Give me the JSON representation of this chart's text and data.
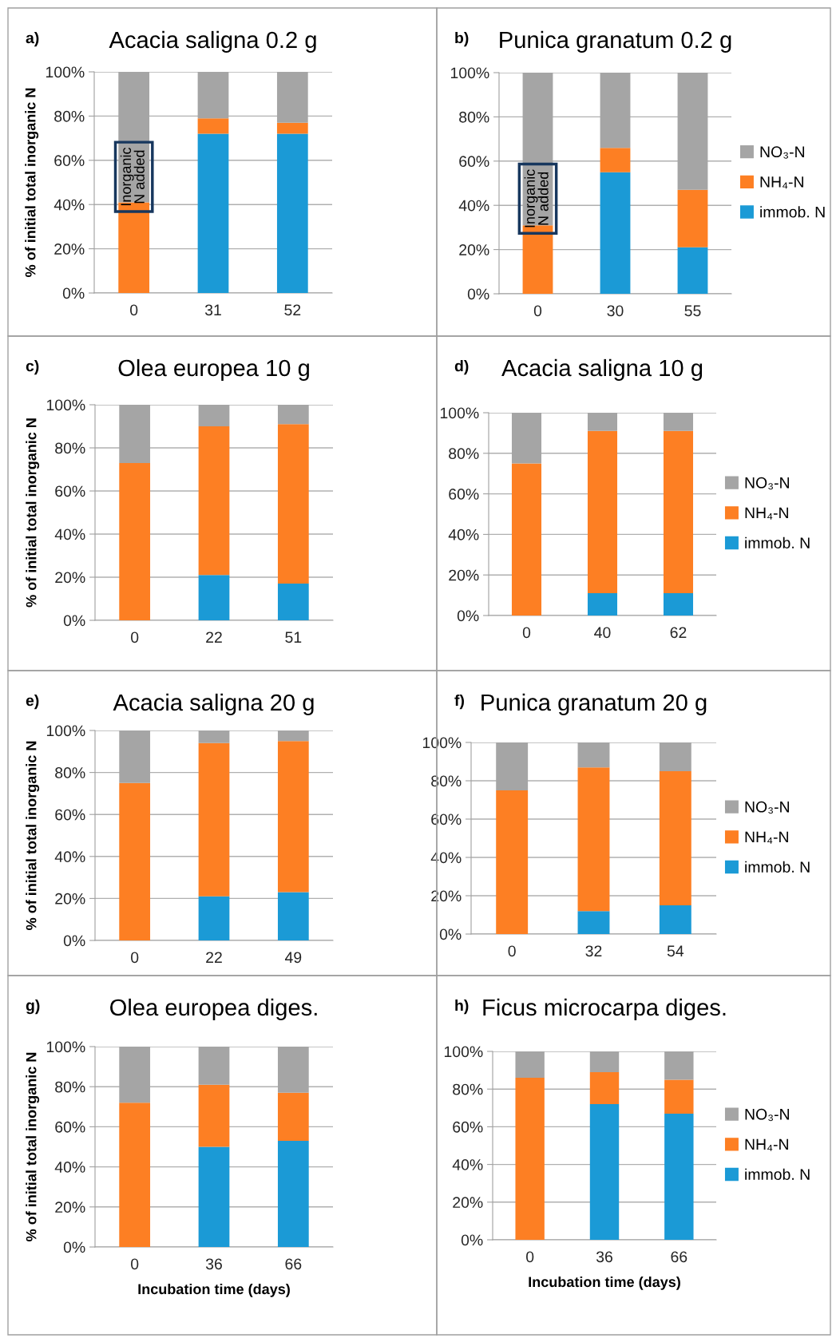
{
  "chart_data": [
    {
      "type": "bar",
      "stacked": true,
      "title": "Acacia saligna 0.2 g",
      "ylabel": "% of initial total inorganic N",
      "categories": [
        "0",
        "31",
        "52"
      ],
      "ylim": [
        0,
        100
      ],
      "yticks": [
        {
          "value": 0,
          "label": "0%"
        },
        {
          "value": 20,
          "label": "20%"
        },
        {
          "value": 40,
          "label": "40%"
        },
        {
          "value": 60,
          "label": "60%"
        },
        {
          "value": 80,
          "label": "80%"
        },
        {
          "value": 100,
          "label": "100%"
        }
      ],
      "grid": "y",
      "legend": false,
      "annotations": [
        "a)",
        "Inorganic\nN added"
      ],
      "series": [
        {
          "color": "#1b9ad6",
          "values": [
            null,
            72,
            72
          ]
        },
        {
          "color": "#fd7f23",
          "values": [
            41,
            7,
            5
          ]
        },
        {
          "color": "#a5a5a5",
          "values": [
            59,
            21,
            23
          ]
        }
      ]
    },
    {
      "type": "bar",
      "stacked": true,
      "title": "Punica granatum 0.2 g",
      "categories": [
        "0",
        "30",
        "55"
      ],
      "ylim": [
        0,
        100
      ],
      "yticks": [
        {
          "value": 0,
          "label": "0%"
        },
        {
          "value": 20,
          "label": "20%"
        },
        {
          "value": 40,
          "label": "40%"
        },
        {
          "value": 60,
          "label": "60%"
        },
        {
          "value": 80,
          "label": "80%"
        },
        {
          "value": 100,
          "label": "100%"
        }
      ],
      "grid": "y",
      "legend": "right",
      "annotations": [
        "b)",
        "Inorganic\nN added"
      ],
      "series": [
        {
          "name": "immob. N",
          "color": "#1b9ad6",
          "values": [
            null,
            55,
            21
          ]
        },
        {
          "name": "NH₄-N",
          "color": "#fd7f23",
          "values": [
            31,
            11,
            26
          ]
        },
        {
          "name": "NO₃-N",
          "color": "#a5a5a5",
          "values": [
            69,
            34,
            53
          ]
        }
      ]
    },
    {
      "type": "bar",
      "stacked": true,
      "title": "Olea europea 10 g",
      "ylabel": "% of initial total inorganic N",
      "categories": [
        "0",
        "22",
        "51"
      ],
      "ylim": [
        0,
        100
      ],
      "yticks": [
        {
          "value": 0,
          "label": "0%"
        },
        {
          "value": 20,
          "label": "20%"
        },
        {
          "value": 40,
          "label": "40%"
        },
        {
          "value": 60,
          "label": "60%"
        },
        {
          "value": 80,
          "label": "80%"
        },
        {
          "value": 100,
          "label": "100%"
        }
      ],
      "grid": "y",
      "legend": false,
      "annotations": [
        "c)"
      ],
      "series": [
        {
          "color": "#1b9ad6",
          "values": [
            null,
            21,
            17
          ]
        },
        {
          "color": "#fd7f23",
          "values": [
            73,
            69,
            74
          ]
        },
        {
          "color": "#a5a5a5",
          "values": [
            27,
            10,
            9
          ]
        }
      ]
    },
    {
      "type": "bar",
      "stacked": true,
      "title": "Acacia saligna 10 g",
      "categories": [
        "0",
        "40",
        "62"
      ],
      "ylim": [
        0,
        100
      ],
      "yticks": [
        {
          "value": 0,
          "label": "0%"
        },
        {
          "value": 20,
          "label": "20%"
        },
        {
          "value": 40,
          "label": "40%"
        },
        {
          "value": 60,
          "label": "60%"
        },
        {
          "value": 80,
          "label": "80%"
        },
        {
          "value": 100,
          "label": "100%"
        }
      ],
      "grid": "y",
      "legend": "right",
      "annotations": [
        "d)"
      ],
      "series": [
        {
          "name": "immob. N",
          "color": "#1b9ad6",
          "values": [
            null,
            11,
            11
          ]
        },
        {
          "name": "NH₄-N",
          "color": "#fd7f23",
          "values": [
            75,
            80,
            80
          ]
        },
        {
          "name": "NO₃-N",
          "color": "#a5a5a5",
          "values": [
            25,
            9,
            9
          ]
        }
      ]
    },
    {
      "type": "bar",
      "stacked": true,
      "title": "Acacia saligna 20 g",
      "ylabel": "% of initial total inorganic N",
      "categories": [
        "0",
        "22",
        "49"
      ],
      "ylim": [
        0,
        100
      ],
      "yticks": [
        {
          "value": 0,
          "label": "0%"
        },
        {
          "value": 20,
          "label": "20%"
        },
        {
          "value": 40,
          "label": "40%"
        },
        {
          "value": 60,
          "label": "60%"
        },
        {
          "value": 80,
          "label": "80%"
        },
        {
          "value": 100,
          "label": "100%"
        }
      ],
      "grid": "y",
      "legend": false,
      "annotations": [
        "e)"
      ],
      "series": [
        {
          "color": "#1b9ad6",
          "values": [
            null,
            21,
            23
          ]
        },
        {
          "color": "#fd7f23",
          "values": [
            75,
            73,
            72
          ]
        },
        {
          "color": "#a5a5a5",
          "values": [
            25,
            6,
            5
          ]
        }
      ]
    },
    {
      "type": "bar",
      "stacked": true,
      "title": "Punica granatum 20 g",
      "categories": [
        "0",
        "32",
        "54"
      ],
      "ylim": [
        0,
        100
      ],
      "yticks": [
        {
          "value": 0,
          "label": "0%"
        },
        {
          "value": 20,
          "label": "20%"
        },
        {
          "value": 40,
          "label": "40%"
        },
        {
          "value": 60,
          "label": "60%"
        },
        {
          "value": 80,
          "label": "80%"
        },
        {
          "value": 100,
          "label": "100%"
        }
      ],
      "grid": "y",
      "legend": "right",
      "annotations": [
        "f)"
      ],
      "series": [
        {
          "name": "immob. N",
          "color": "#1b9ad6",
          "values": [
            null,
            12,
            15
          ]
        },
        {
          "name": "NH₄-N",
          "color": "#fd7f23",
          "values": [
            75,
            75,
            70
          ]
        },
        {
          "name": "NO₃-N",
          "color": "#a5a5a5",
          "values": [
            25,
            13,
            15
          ]
        }
      ]
    },
    {
      "type": "bar",
      "stacked": true,
      "title": "Olea europea diges.",
      "ylabel": "% of initial total inorganic N",
      "xlabel": "Incubation time (days)",
      "categories": [
        "0",
        "36",
        "66"
      ],
      "ylim": [
        0,
        100
      ],
      "yticks": [
        {
          "value": 0,
          "label": "0%"
        },
        {
          "value": 20,
          "label": "20%"
        },
        {
          "value": 40,
          "label": "40%"
        },
        {
          "value": 60,
          "label": "60%"
        },
        {
          "value": 80,
          "label": "80%"
        },
        {
          "value": 100,
          "label": "100%"
        }
      ],
      "grid": "y",
      "legend": false,
      "annotations": [
        "g)"
      ],
      "series": [
        {
          "color": "#1b9ad6",
          "values": [
            null,
            50,
            53
          ]
        },
        {
          "color": "#fd7f23",
          "values": [
            72,
            31,
            24
          ]
        },
        {
          "color": "#a5a5a5",
          "values": [
            28,
            19,
            23
          ]
        }
      ]
    },
    {
      "type": "bar",
      "stacked": true,
      "title": "Ficus microcarpa diges.",
      "xlabel": "Incubation time (days)",
      "categories": [
        "0",
        "36",
        "66"
      ],
      "ylim": [
        0,
        100
      ],
      "yticks": [
        {
          "value": 0,
          "label": "0%"
        },
        {
          "value": 20,
          "label": "20%"
        },
        {
          "value": 40,
          "label": "40%"
        },
        {
          "value": 60,
          "label": "60%"
        },
        {
          "value": 80,
          "label": "80%"
        },
        {
          "value": 100,
          "label": "100%"
        }
      ],
      "grid": "y",
      "legend": "right",
      "annotations": [
        "h)"
      ],
      "series": [
        {
          "name": "immob. N",
          "color": "#1b9ad6",
          "values": [
            null,
            72,
            67
          ]
        },
        {
          "name": "NH₄-N",
          "color": "#fd7f23",
          "values": [
            86,
            17,
            18
          ]
        },
        {
          "name": "NO₃-N",
          "color": "#a5a5a5",
          "values": [
            14,
            11,
            15
          ]
        }
      ]
    }
  ]
}
